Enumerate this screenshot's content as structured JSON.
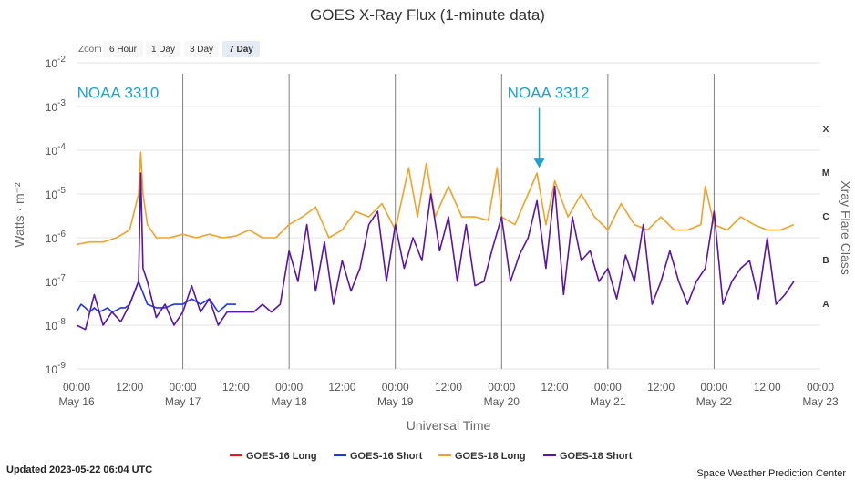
{
  "chart_data": {
    "type": "line",
    "title": "GOES X-Ray Flux (1-minute data)",
    "xlabel": "Universal Time",
    "ylabel": "Watts · m⁻²",
    "right_axis_label": "Xray Flare Class",
    "y_scale": "log",
    "ylim": [
      1e-09,
      0.01
    ],
    "y_ticks": [
      {
        "exp": "-2"
      },
      {
        "exp": "-3"
      },
      {
        "exp": "-4"
      },
      {
        "exp": "-5"
      },
      {
        "exp": "-6"
      },
      {
        "exp": "-7"
      },
      {
        "exp": "-8"
      },
      {
        "exp": "-9"
      }
    ],
    "y_tick_base": "10",
    "xlim": [
      0,
      168
    ],
    "x_unit": "hours since 2023-05-16 00:00 UTC",
    "x_ticks": [
      {
        "hour": 0,
        "time": "00:00",
        "date": "May 16"
      },
      {
        "hour": 12,
        "time": "12:00",
        "date": ""
      },
      {
        "hour": 24,
        "time": "00:00",
        "date": "May 17"
      },
      {
        "hour": 36,
        "time": "12:00",
        "date": ""
      },
      {
        "hour": 48,
        "time": "00:00",
        "date": "May 18"
      },
      {
        "hour": 60,
        "time": "12:00",
        "date": ""
      },
      {
        "hour": 72,
        "time": "00:00",
        "date": "May 19"
      },
      {
        "hour": 84,
        "time": "12:00",
        "date": ""
      },
      {
        "hour": 96,
        "time": "00:00",
        "date": "May 20"
      },
      {
        "hour": 108,
        "time": "12:00",
        "date": ""
      },
      {
        "hour": 120,
        "time": "00:00",
        "date": "May 21"
      },
      {
        "hour": 132,
        "time": "12:00",
        "date": ""
      },
      {
        "hour": 144,
        "time": "00:00",
        "date": "May 22"
      },
      {
        "hour": 156,
        "time": "12:00",
        "date": ""
      },
      {
        "hour": 168,
        "time": "00:00",
        "date": "May 23"
      }
    ],
    "day_lines": [
      24,
      48,
      72,
      96,
      120,
      144
    ],
    "flare_classes": [
      {
        "label": "X",
        "flux": 0.0001
      },
      {
        "label": "M",
        "flux": 1e-05
      },
      {
        "label": "C",
        "flux": 1e-06
      },
      {
        "label": "B",
        "flux": 1e-07
      },
      {
        "label": "A",
        "flux": 1e-08
      }
    ],
    "annotations": [
      {
        "text": "NOAA 3310",
        "hour": 7.3,
        "flux": 0.002,
        "arrow": false
      },
      {
        "text": "NOAA 3312",
        "hour": 104.5,
        "flux": 0.002,
        "arrow": true,
        "arrow_to_flux": 4e-05
      }
    ],
    "series": [
      {
        "name": "GOES-16 Long",
        "color": "#e8191b",
        "x": [],
        "y": []
      },
      {
        "name": "GOES-16 Short",
        "color": "#1c36e8",
        "x": [
          0,
          1,
          2,
          3,
          4,
          5,
          6,
          7,
          8,
          9,
          10,
          11,
          12,
          14,
          16,
          18,
          20,
          22,
          24,
          26,
          28,
          30,
          32,
          34,
          36
        ],
        "y": [
          2e-08,
          3e-08,
          2.5e-08,
          2e-08,
          2.5e-08,
          2e-08,
          2.2e-08,
          2.5e-08,
          2e-08,
          2.2e-08,
          2.5e-08,
          2.5e-08,
          3e-08,
          1e-07,
          3e-08,
          2.5e-08,
          2.5e-08,
          3e-08,
          3e-08,
          4e-08,
          3e-08,
          4e-08,
          2e-08,
          3e-08,
          3e-08
        ]
      },
      {
        "name": "GOES-18 Long",
        "color": "#f0a22a",
        "x": [
          0,
          3,
          6,
          9,
          12,
          14,
          14.5,
          15,
          16,
          18,
          21,
          24,
          27,
          30,
          33,
          36,
          39,
          42,
          45,
          48,
          51,
          54,
          57,
          60,
          63,
          66,
          69,
          72,
          75,
          77,
          79,
          81,
          84,
          87,
          90,
          93,
          95,
          96,
          99,
          102,
          104,
          106,
          108,
          111,
          114,
          117,
          120,
          123,
          126,
          129,
          132,
          135,
          138,
          141,
          142,
          144,
          147,
          150,
          153,
          156,
          159,
          162
        ],
        "y": [
          7e-07,
          8e-07,
          8e-07,
          1e-06,
          1.5e-06,
          1e-05,
          9e-05,
          1e-05,
          2e-06,
          1e-06,
          1e-06,
          1.2e-06,
          1e-06,
          1.2e-06,
          1e-06,
          1.1e-06,
          1.5e-06,
          1e-06,
          1e-06,
          2e-06,
          3e-06,
          5e-06,
          1e-06,
          1.5e-06,
          4e-06,
          3e-06,
          6e-06,
          1.5e-06,
          4e-05,
          3e-06,
          5e-05,
          3e-06,
          1.5e-05,
          3e-06,
          3e-06,
          2.5e-06,
          4e-05,
          3e-06,
          2e-06,
          1e-05,
          3e-05,
          2e-06,
          2e-05,
          3e-06,
          1e-05,
          3e-06,
          1.5e-06,
          6e-06,
          2e-06,
          1.5e-06,
          3e-06,
          1.5e-06,
          1.5e-06,
          2e-06,
          1.5e-05,
          2e-06,
          1.5e-06,
          3e-06,
          2e-06,
          1.5e-06,
          1.5e-06,
          2e-06
        ]
      },
      {
        "name": "GOES-18 Short",
        "color": "#5a14a8",
        "x": [
          0,
          2,
          4,
          6,
          8,
          10,
          12,
          14,
          14.5,
          15,
          16,
          18,
          20,
          22,
          24,
          26,
          28,
          30,
          32,
          34,
          36,
          38,
          40,
          42,
          44,
          46,
          48,
          50,
          52,
          54,
          56,
          58,
          60,
          62,
          64,
          66,
          68,
          70,
          72,
          74,
          76,
          78,
          80,
          82,
          84,
          86,
          88,
          90,
          92,
          94,
          96,
          98,
          100,
          102,
          104,
          106,
          108,
          110,
          112,
          114,
          116,
          118,
          120,
          122,
          124,
          126,
          128,
          130,
          132,
          134,
          136,
          138,
          140,
          142,
          144,
          146,
          148,
          150,
          152,
          154,
          156,
          158,
          160,
          162
        ],
        "y": [
          1e-08,
          8e-09,
          5e-08,
          1e-08,
          2e-08,
          1.2e-08,
          3e-08,
          1e-07,
          3e-05,
          2e-07,
          1e-07,
          1.5e-08,
          3e-08,
          1e-08,
          2e-08,
          8e-08,
          2e-08,
          4e-08,
          1e-08,
          2e-08,
          2e-08,
          2e-08,
          2e-08,
          3e-08,
          2e-08,
          3e-08,
          5e-07,
          1e-07,
          2e-06,
          6e-08,
          8e-07,
          3e-08,
          3e-07,
          6e-08,
          2e-07,
          2e-06,
          4e-06,
          1e-07,
          2e-06,
          2e-07,
          1e-06,
          3e-07,
          1e-05,
          5e-07,
          3e-06,
          1e-07,
          2e-06,
          8e-08,
          1e-07,
          6e-07,
          3e-06,
          1e-07,
          4e-07,
          1e-06,
          7e-06,
          2e-07,
          1.5e-05,
          5e-08,
          3e-06,
          3e-07,
          5e-07,
          1e-07,
          2e-07,
          4e-08,
          4e-07,
          1e-07,
          2e-06,
          3e-08,
          1e-07,
          5e-07,
          1e-07,
          3e-08,
          1e-07,
          2e-07,
          4e-06,
          3e-08,
          1e-07,
          2e-07,
          3e-07,
          4e-08,
          1e-06,
          3e-08,
          5e-08,
          1e-07
        ]
      }
    ],
    "legend": {
      "placement": "bottom-center"
    },
    "grid": true
  },
  "zoom": {
    "label": "Zoom",
    "buttons": [
      {
        "label": "6 Hour",
        "active": false
      },
      {
        "label": "1 Day",
        "active": false
      },
      {
        "label": "3 Day",
        "active": false
      },
      {
        "label": "7 Day",
        "active": true
      }
    ]
  },
  "footer": {
    "updated": "Updated 2023-05-22 06:04 UTC",
    "credit": "Space Weather Prediction Center"
  },
  "colors": {
    "grid": "#e6e6e6",
    "day_line": "#7f7f7f",
    "annotation": "#1aa3cf"
  }
}
